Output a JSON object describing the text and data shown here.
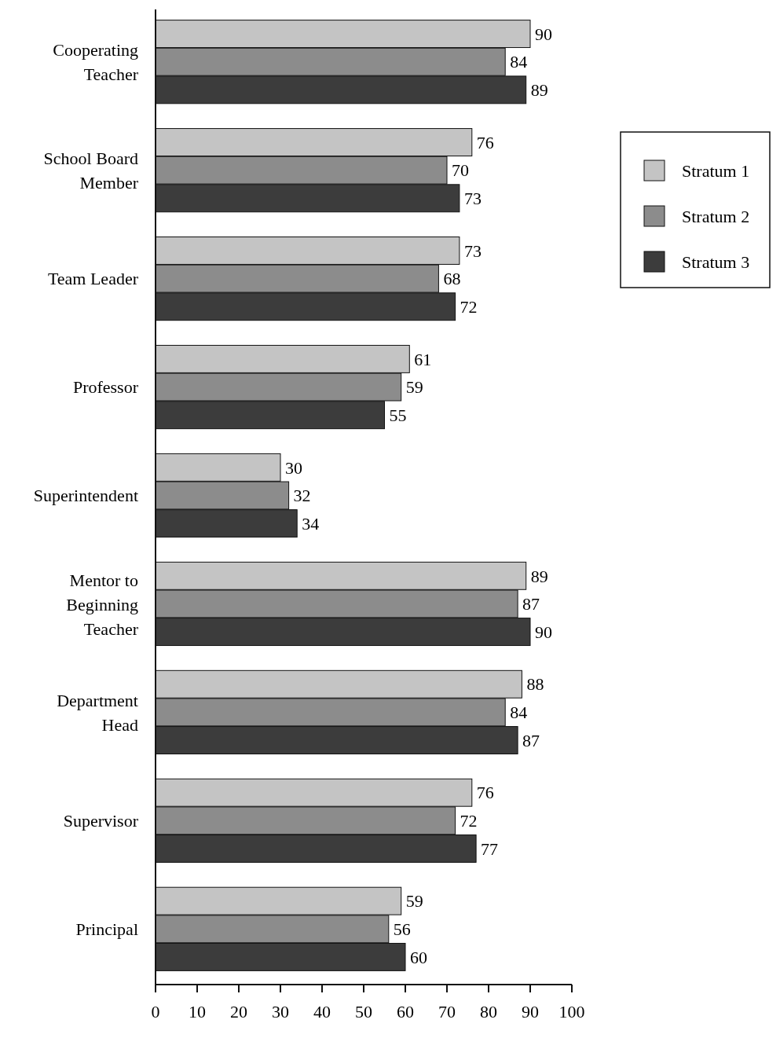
{
  "chart_data": {
    "type": "bar",
    "orientation": "horizontal",
    "categories": [
      "Cooperating Teacher",
      "School Board Member",
      "Team Leader",
      "Professor",
      "Superintendent",
      "Mentor to Beginning Teacher",
      "Department Head",
      "Supervisor",
      "Principal"
    ],
    "series": [
      {
        "name": "Stratum 1",
        "color": "#c4c4c4",
        "values": [
          90,
          76,
          73,
          61,
          30,
          89,
          88,
          76,
          59
        ]
      },
      {
        "name": "Stratum 2",
        "color": "#8c8c8c",
        "values": [
          84,
          70,
          68,
          59,
          32,
          87,
          84,
          72,
          56
        ]
      },
      {
        "name": "Stratum 3",
        "color": "#3c3c3c",
        "values": [
          89,
          73,
          72,
          55,
          34,
          90,
          87,
          77,
          60
        ]
      }
    ],
    "xlim": [
      0,
      100
    ],
    "xticks": [
      0,
      10,
      20,
      30,
      40,
      50,
      60,
      70,
      80,
      90,
      100
    ],
    "data_labels": true,
    "legend": "right",
    "grid": false
  }
}
